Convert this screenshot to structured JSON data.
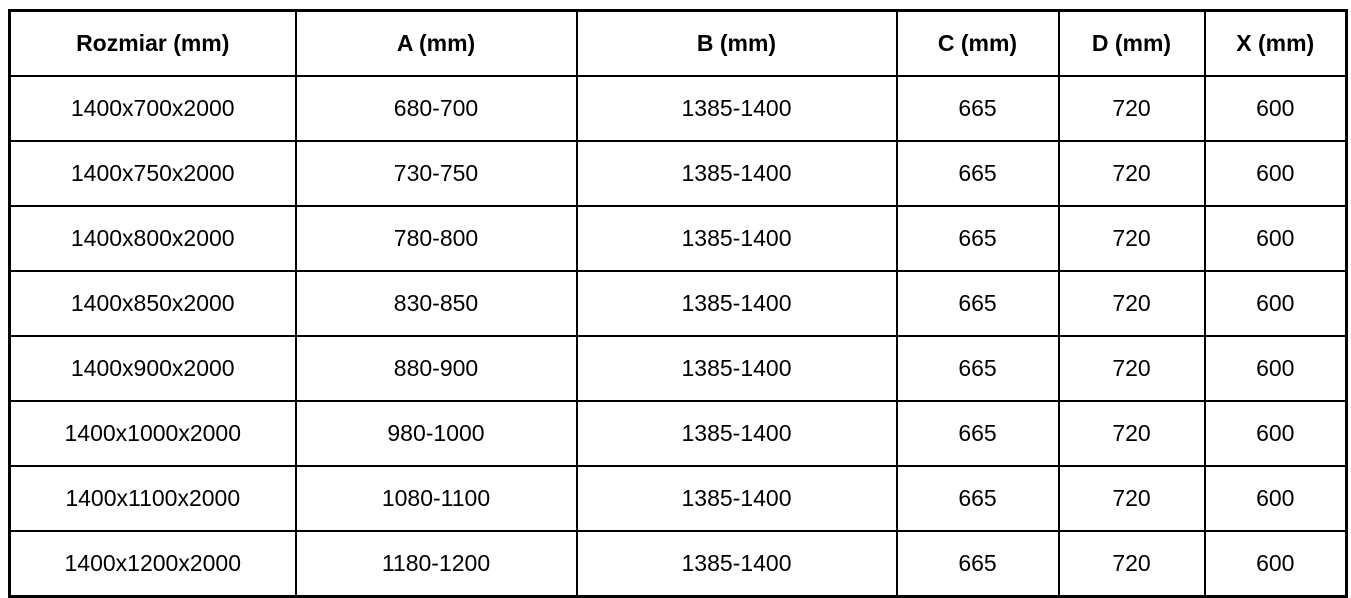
{
  "colors": {
    "border": "#000000",
    "text": "#000000",
    "background": "#ffffff"
  },
  "table": {
    "column_keys": [
      "rozmiar",
      "a",
      "b",
      "c",
      "d",
      "x"
    ],
    "columns": [
      "Rozmiar (mm)",
      "A (mm)",
      "B (mm)",
      "C (mm)",
      "D (mm)",
      "X (mm)"
    ],
    "rows": [
      [
        "1400x700x2000",
        "680-700",
        "1385-1400",
        "665",
        "720",
        "600"
      ],
      [
        "1400x750x2000",
        "730-750",
        "1385-1400",
        "665",
        "720",
        "600"
      ],
      [
        "1400x800x2000",
        "780-800",
        "1385-1400",
        "665",
        "720",
        "600"
      ],
      [
        "1400x850x2000",
        "830-850",
        "1385-1400",
        "665",
        "720",
        "600"
      ],
      [
        "1400x900x2000",
        "880-900",
        "1385-1400",
        "665",
        "720",
        "600"
      ],
      [
        "1400x1000x2000",
        "980-1000",
        "1385-1400",
        "665",
        "720",
        "600"
      ],
      [
        "1400x1100x2000",
        "1080-1100",
        "1385-1400",
        "665",
        "720",
        "600"
      ],
      [
        "1400x1200x2000",
        "1180-1200",
        "1385-1400",
        "665",
        "720",
        "600"
      ]
    ]
  }
}
